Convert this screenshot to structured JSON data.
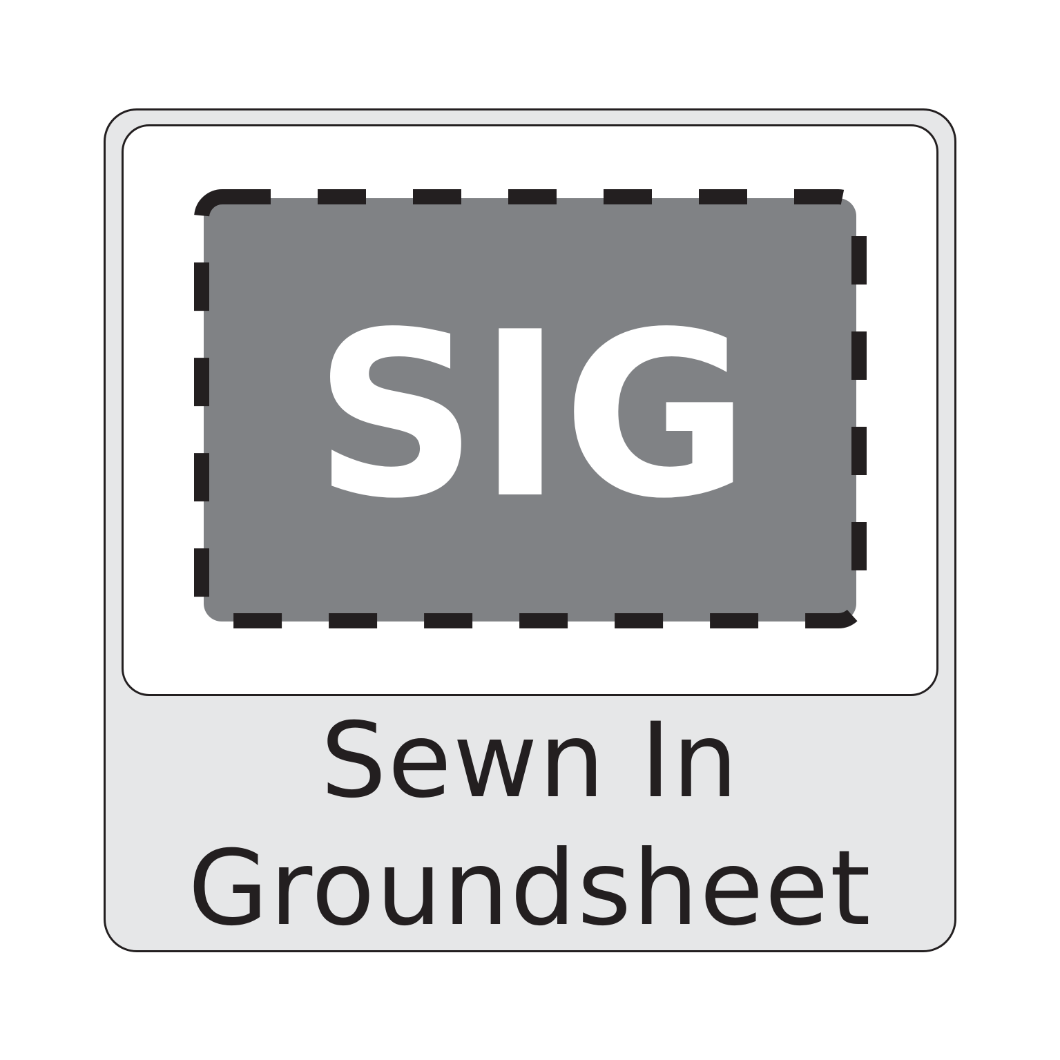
{
  "icon": {
    "name": "groundsheet-icon",
    "label": "SIG"
  },
  "caption": {
    "line1": "Sewn In",
    "line2": "Groundsheet"
  },
  "colors": {
    "outline": "#231f20",
    "badge_background": "#e6e7e8",
    "panel_background": "#ffffff",
    "sheet_fill": "#808285",
    "label_color": "#ffffff"
  }
}
